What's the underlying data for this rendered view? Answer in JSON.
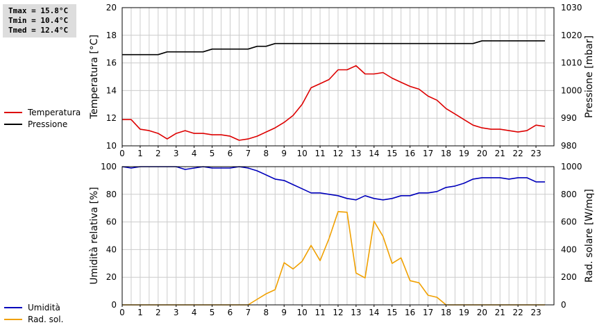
{
  "stats": {
    "tmax": "Tmax = 15.8°C",
    "tmin": "Tmin = 10.4°C",
    "tmed": "Tmed = 12.4°C"
  },
  "colors": {
    "temperature": "#dd0000",
    "pressure": "#000000",
    "humidity": "#0000bb",
    "radiation": "#f0a000",
    "grid": "#cccccc"
  },
  "chart_data": [
    {
      "type": "line",
      "ylabel": "Temperatura [°C]",
      "y2label": "Pressione [mbar]",
      "ylim": [
        10,
        20
      ],
      "y2lim": [
        980,
        1030
      ],
      "yticks": [
        10,
        12,
        14,
        16,
        18,
        20
      ],
      "y2ticks": [
        980,
        990,
        1000,
        1010,
        1020,
        1030
      ],
      "xlim": [
        0,
        24
      ],
      "xticks": [
        0,
        1,
        2,
        3,
        4,
        5,
        6,
        7,
        8,
        9,
        10,
        11,
        12,
        13,
        14,
        15,
        16,
        17,
        18,
        19,
        20,
        21,
        22,
        23
      ],
      "grid": true,
      "series": [
        {
          "name": "Temperatura",
          "axis": "left",
          "x": [
            0,
            0.5,
            1,
            1.5,
            2,
            2.5,
            3,
            3.5,
            4,
            4.5,
            5,
            5.5,
            6,
            6.5,
            7,
            7.5,
            8,
            8.5,
            9,
            9.5,
            10,
            10.5,
            11,
            11.5,
            12,
            12.5,
            13,
            13.5,
            14,
            14.5,
            15,
            15.5,
            16,
            16.5,
            17,
            17.5,
            18,
            18.5,
            19,
            19.5,
            20,
            20.5,
            21,
            21.5,
            22,
            22.5,
            23,
            23.5
          ],
          "values": [
            11.9,
            11.9,
            11.2,
            11.1,
            10.9,
            10.5,
            10.9,
            11.1,
            10.9,
            10.9,
            10.8,
            10.8,
            10.7,
            10.4,
            10.5,
            10.7,
            11.0,
            11.3,
            11.7,
            12.2,
            13.0,
            14.2,
            14.5,
            14.8,
            15.5,
            15.5,
            15.8,
            15.2,
            15.2,
            15.3,
            14.9,
            14.6,
            14.3,
            14.1,
            13.6,
            13.3,
            12.7,
            12.3,
            11.9,
            11.5,
            11.3,
            11.2,
            11.2,
            11.1,
            11.0,
            11.1,
            11.5,
            11.4
          ]
        },
        {
          "name": "Pressione",
          "axis": "right",
          "x": [
            0,
            0.5,
            1,
            1.5,
            2,
            2.5,
            3,
            3.5,
            4,
            4.5,
            5,
            5.5,
            6,
            6.5,
            7,
            7.5,
            8,
            8.5,
            9,
            9.5,
            10,
            10.5,
            11,
            11.5,
            12,
            12.5,
            13,
            13.5,
            14,
            14.5,
            15,
            15.5,
            16,
            16.5,
            17,
            17.5,
            18,
            18.5,
            19,
            19.5,
            20,
            20.5,
            21,
            21.5,
            22,
            22.5,
            23,
            23.5
          ],
          "values": [
            1013,
            1013,
            1013,
            1013,
            1013,
            1014,
            1014,
            1014,
            1014,
            1014,
            1015,
            1015,
            1015,
            1015,
            1015,
            1016,
            1016,
            1017,
            1017,
            1017,
            1017,
            1017,
            1017,
            1017,
            1017,
            1017,
            1017,
            1017,
            1017,
            1017,
            1017,
            1017,
            1017,
            1017,
            1017,
            1017,
            1017,
            1017,
            1017,
            1017,
            1018,
            1018,
            1018,
            1018,
            1018,
            1018,
            1018,
            1018
          ]
        }
      ]
    },
    {
      "type": "line",
      "ylabel": "Umidità relativa [%]",
      "y2label": "Rad. solare [W/mq]",
      "ylim": [
        0,
        100
      ],
      "y2lim": [
        0,
        1000
      ],
      "yticks": [
        0,
        20,
        40,
        60,
        80,
        100
      ],
      "y2ticks": [
        0,
        200,
        400,
        600,
        800,
        1000
      ],
      "xlim": [
        0,
        24
      ],
      "xticks": [
        0,
        1,
        2,
        3,
        4,
        5,
        6,
        7,
        8,
        9,
        10,
        11,
        12,
        13,
        14,
        15,
        16,
        17,
        18,
        19,
        20,
        21,
        22,
        23
      ],
      "grid": true,
      "series": [
        {
          "name": "Umidità",
          "axis": "left",
          "x": [
            0,
            0.5,
            1,
            1.5,
            2,
            2.5,
            3,
            3.5,
            4,
            4.5,
            5,
            5.5,
            6,
            6.5,
            7,
            7.5,
            8,
            8.5,
            9,
            9.5,
            10,
            10.5,
            11,
            11.5,
            12,
            12.5,
            13,
            13.5,
            14,
            14.5,
            15,
            15.5,
            16,
            16.5,
            17,
            17.5,
            18,
            18.5,
            19,
            19.5,
            20,
            20.5,
            21,
            21.5,
            22,
            22.5,
            23,
            23.5
          ],
          "values": [
            100,
            99,
            100,
            100,
            100,
            100,
            100,
            98,
            99,
            100,
            99,
            99,
            99,
            100,
            99,
            97,
            94,
            91,
            90,
            87,
            84,
            81,
            81,
            80,
            79,
            77,
            76,
            79,
            77,
            76,
            77,
            79,
            79,
            81,
            81,
            82,
            85,
            86,
            88,
            91,
            92,
            92,
            92,
            91,
            92,
            92,
            89,
            89
          ]
        },
        {
          "name": "Rad. sol.",
          "axis": "right",
          "x": [
            0,
            0.5,
            1,
            1.5,
            2,
            2.5,
            3,
            3.5,
            4,
            4.5,
            5,
            5.5,
            6,
            6.5,
            7,
            7.5,
            8,
            8.5,
            9,
            9.5,
            10,
            10.5,
            11,
            11.5,
            12,
            12.5,
            13,
            13.5,
            14,
            14.5,
            15,
            15.5,
            16,
            16.5,
            17,
            17.5,
            18,
            18.5,
            19,
            19.5,
            20,
            20.5,
            21,
            21.5,
            22,
            22.5,
            23,
            23.5
          ],
          "values": [
            0,
            0,
            0,
            0,
            0,
            0,
            0,
            0,
            0,
            0,
            0,
            0,
            0,
            0,
            0,
            40,
            80,
            110,
            305,
            260,
            315,
            430,
            320,
            480,
            675,
            670,
            230,
            195,
            605,
            495,
            300,
            340,
            175,
            160,
            70,
            55,
            0,
            0,
            0,
            0,
            0,
            0,
            0,
            0,
            0,
            0,
            0,
            0
          ]
        }
      ]
    }
  ]
}
